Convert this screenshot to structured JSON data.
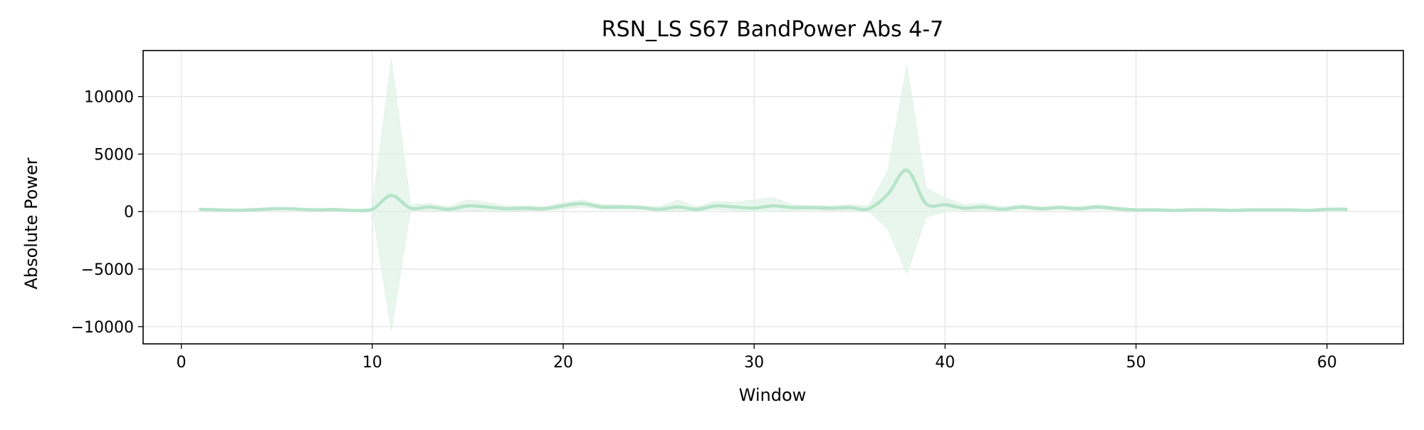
{
  "chart_data": {
    "type": "line",
    "title": "RSN_LS S67 BandPower Abs 4-7",
    "xlabel": "Window",
    "ylabel": "Absolute Power",
    "xlim": [
      -2,
      64
    ],
    "ylim": [
      -11500,
      14000
    ],
    "xticks": [
      0,
      10,
      20,
      30,
      40,
      50,
      60
    ],
    "xtick_labels": [
      "0",
      "10",
      "20",
      "30",
      "40",
      "50",
      "60"
    ],
    "yticks": [
      -10000,
      -5000,
      0,
      5000,
      10000
    ],
    "ytick_labels": [
      "−10000",
      "−5000",
      "0",
      "5000",
      "10000"
    ],
    "grid": true,
    "legend": "none",
    "line_color": "#b5e4c8",
    "band_color": "#dff2e6",
    "series": [
      {
        "x": [
          1,
          2,
          3,
          4,
          5,
          6,
          7,
          8,
          9,
          10,
          11,
          12,
          13,
          14,
          15,
          16,
          17,
          18,
          19,
          20,
          21,
          22,
          23,
          24,
          25,
          26,
          27,
          28,
          29,
          30,
          31,
          32,
          33,
          34,
          35,
          36,
          37,
          38,
          39,
          40,
          41,
          42,
          43,
          44,
          45,
          46,
          47,
          48,
          49,
          50,
          51,
          52,
          53,
          54,
          55,
          56,
          57,
          58,
          59,
          60,
          61
        ],
        "values": [
          200,
          150,
          120,
          180,
          250,
          220,
          150,
          180,
          100,
          200,
          1400,
          300,
          400,
          200,
          500,
          400,
          250,
          300,
          250,
          500,
          700,
          400,
          400,
          350,
          200,
          400,
          200,
          500,
          400,
          300,
          500,
          350,
          350,
          300,
          350,
          250,
          1500,
          3600,
          700,
          600,
          300,
          400,
          200,
          400,
          250,
          350,
          250,
          400,
          250,
          150,
          150,
          100,
          150,
          150,
          100,
          150,
          150,
          150,
          100,
          200,
          200
        ],
        "upper": [
          250,
          200,
          150,
          200,
          300,
          280,
          200,
          220,
          150,
          300,
          13200,
          600,
          700,
          400,
          1000,
          800,
          500,
          500,
          400,
          800,
          1000,
          600,
          600,
          500,
          400,
          1000,
          400,
          900,
          800,
          1000,
          1200,
          600,
          500,
          500,
          600,
          500,
          3500,
          12700,
          2000,
          1200,
          600,
          700,
          400,
          600,
          400,
          500,
          400,
          600,
          400,
          250,
          250,
          200,
          250,
          250,
          200,
          250,
          250,
          250,
          200,
          300,
          300
        ],
        "lower": [
          150,
          100,
          90,
          150,
          200,
          160,
          100,
          140,
          50,
          100,
          -10300,
          100,
          100,
          50,
          100,
          50,
          50,
          100,
          100,
          200,
          400,
          200,
          200,
          200,
          50,
          50,
          50,
          200,
          100,
          0,
          0,
          100,
          150,
          100,
          100,
          50,
          -1500,
          -5400,
          -500,
          0,
          50,
          100,
          50,
          200,
          100,
          200,
          100,
          200,
          100,
          50,
          50,
          0,
          50,
          50,
          0,
          50,
          50,
          50,
          0,
          100,
          100
        ]
      }
    ]
  }
}
